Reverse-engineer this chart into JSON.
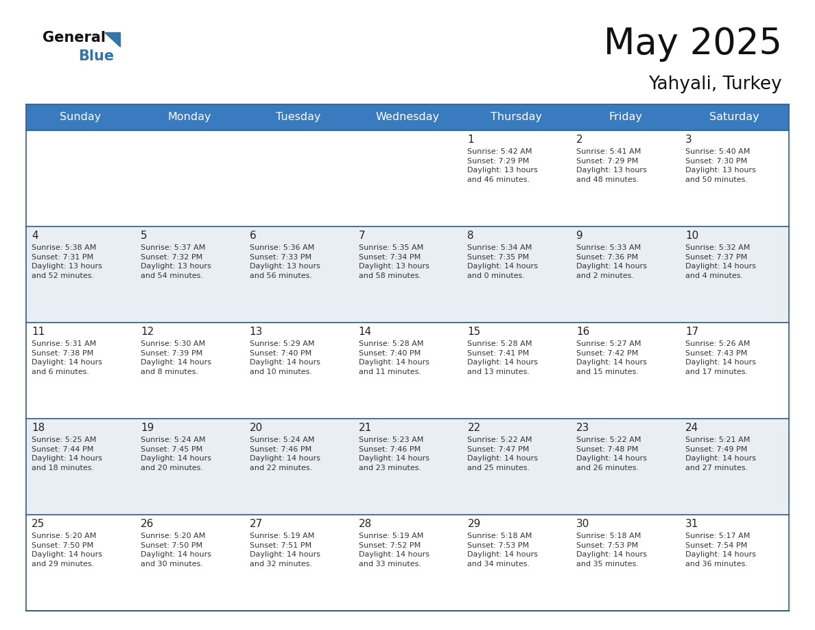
{
  "title": "May 2025",
  "subtitle": "Yahyali, Turkey",
  "header_color": "#3a7bbf",
  "header_text_color": "#ffffff",
  "row_bg_white": "#ffffff",
  "row_bg_light": "#e8eef4",
  "day_number_color": "#222222",
  "text_color": "#333333",
  "border_color": "#2b5c8e",
  "days_of_week": [
    "Sunday",
    "Monday",
    "Tuesday",
    "Wednesday",
    "Thursday",
    "Friday",
    "Saturday"
  ],
  "weeks": [
    [
      {
        "day": "",
        "info": ""
      },
      {
        "day": "",
        "info": ""
      },
      {
        "day": "",
        "info": ""
      },
      {
        "day": "",
        "info": ""
      },
      {
        "day": "1",
        "info": "Sunrise: 5:42 AM\nSunset: 7:29 PM\nDaylight: 13 hours\nand 46 minutes."
      },
      {
        "day": "2",
        "info": "Sunrise: 5:41 AM\nSunset: 7:29 PM\nDaylight: 13 hours\nand 48 minutes."
      },
      {
        "day": "3",
        "info": "Sunrise: 5:40 AM\nSunset: 7:30 PM\nDaylight: 13 hours\nand 50 minutes."
      }
    ],
    [
      {
        "day": "4",
        "info": "Sunrise: 5:38 AM\nSunset: 7:31 PM\nDaylight: 13 hours\nand 52 minutes."
      },
      {
        "day": "5",
        "info": "Sunrise: 5:37 AM\nSunset: 7:32 PM\nDaylight: 13 hours\nand 54 minutes."
      },
      {
        "day": "6",
        "info": "Sunrise: 5:36 AM\nSunset: 7:33 PM\nDaylight: 13 hours\nand 56 minutes."
      },
      {
        "day": "7",
        "info": "Sunrise: 5:35 AM\nSunset: 7:34 PM\nDaylight: 13 hours\nand 58 minutes."
      },
      {
        "day": "8",
        "info": "Sunrise: 5:34 AM\nSunset: 7:35 PM\nDaylight: 14 hours\nand 0 minutes."
      },
      {
        "day": "9",
        "info": "Sunrise: 5:33 AM\nSunset: 7:36 PM\nDaylight: 14 hours\nand 2 minutes."
      },
      {
        "day": "10",
        "info": "Sunrise: 5:32 AM\nSunset: 7:37 PM\nDaylight: 14 hours\nand 4 minutes."
      }
    ],
    [
      {
        "day": "11",
        "info": "Sunrise: 5:31 AM\nSunset: 7:38 PM\nDaylight: 14 hours\nand 6 minutes."
      },
      {
        "day": "12",
        "info": "Sunrise: 5:30 AM\nSunset: 7:39 PM\nDaylight: 14 hours\nand 8 minutes."
      },
      {
        "day": "13",
        "info": "Sunrise: 5:29 AM\nSunset: 7:40 PM\nDaylight: 14 hours\nand 10 minutes."
      },
      {
        "day": "14",
        "info": "Sunrise: 5:28 AM\nSunset: 7:40 PM\nDaylight: 14 hours\nand 11 minutes."
      },
      {
        "day": "15",
        "info": "Sunrise: 5:28 AM\nSunset: 7:41 PM\nDaylight: 14 hours\nand 13 minutes."
      },
      {
        "day": "16",
        "info": "Sunrise: 5:27 AM\nSunset: 7:42 PM\nDaylight: 14 hours\nand 15 minutes."
      },
      {
        "day": "17",
        "info": "Sunrise: 5:26 AM\nSunset: 7:43 PM\nDaylight: 14 hours\nand 17 minutes."
      }
    ],
    [
      {
        "day": "18",
        "info": "Sunrise: 5:25 AM\nSunset: 7:44 PM\nDaylight: 14 hours\nand 18 minutes."
      },
      {
        "day": "19",
        "info": "Sunrise: 5:24 AM\nSunset: 7:45 PM\nDaylight: 14 hours\nand 20 minutes."
      },
      {
        "day": "20",
        "info": "Sunrise: 5:24 AM\nSunset: 7:46 PM\nDaylight: 14 hours\nand 22 minutes."
      },
      {
        "day": "21",
        "info": "Sunrise: 5:23 AM\nSunset: 7:46 PM\nDaylight: 14 hours\nand 23 minutes."
      },
      {
        "day": "22",
        "info": "Sunrise: 5:22 AM\nSunset: 7:47 PM\nDaylight: 14 hours\nand 25 minutes."
      },
      {
        "day": "23",
        "info": "Sunrise: 5:22 AM\nSunset: 7:48 PM\nDaylight: 14 hours\nand 26 minutes."
      },
      {
        "day": "24",
        "info": "Sunrise: 5:21 AM\nSunset: 7:49 PM\nDaylight: 14 hours\nand 27 minutes."
      }
    ],
    [
      {
        "day": "25",
        "info": "Sunrise: 5:20 AM\nSunset: 7:50 PM\nDaylight: 14 hours\nand 29 minutes."
      },
      {
        "day": "26",
        "info": "Sunrise: 5:20 AM\nSunset: 7:50 PM\nDaylight: 14 hours\nand 30 minutes."
      },
      {
        "day": "27",
        "info": "Sunrise: 5:19 AM\nSunset: 7:51 PM\nDaylight: 14 hours\nand 32 minutes."
      },
      {
        "day": "28",
        "info": "Sunrise: 5:19 AM\nSunset: 7:52 PM\nDaylight: 14 hours\nand 33 minutes."
      },
      {
        "day": "29",
        "info": "Sunrise: 5:18 AM\nSunset: 7:53 PM\nDaylight: 14 hours\nand 34 minutes."
      },
      {
        "day": "30",
        "info": "Sunrise: 5:18 AM\nSunset: 7:53 PM\nDaylight: 14 hours\nand 35 minutes."
      },
      {
        "day": "31",
        "info": "Sunrise: 5:17 AM\nSunset: 7:54 PM\nDaylight: 14 hours\nand 36 minutes."
      }
    ]
  ],
  "logo_text_general": "General",
  "logo_text_blue": "Blue",
  "logo_color_general": "#111111",
  "logo_color_blue": "#3375a8",
  "logo_triangle_color": "#3375a8",
  "title_fontsize": 38,
  "subtitle_fontsize": 19,
  "header_fontsize": 11.5,
  "day_num_fontsize": 11,
  "info_fontsize": 8.0
}
